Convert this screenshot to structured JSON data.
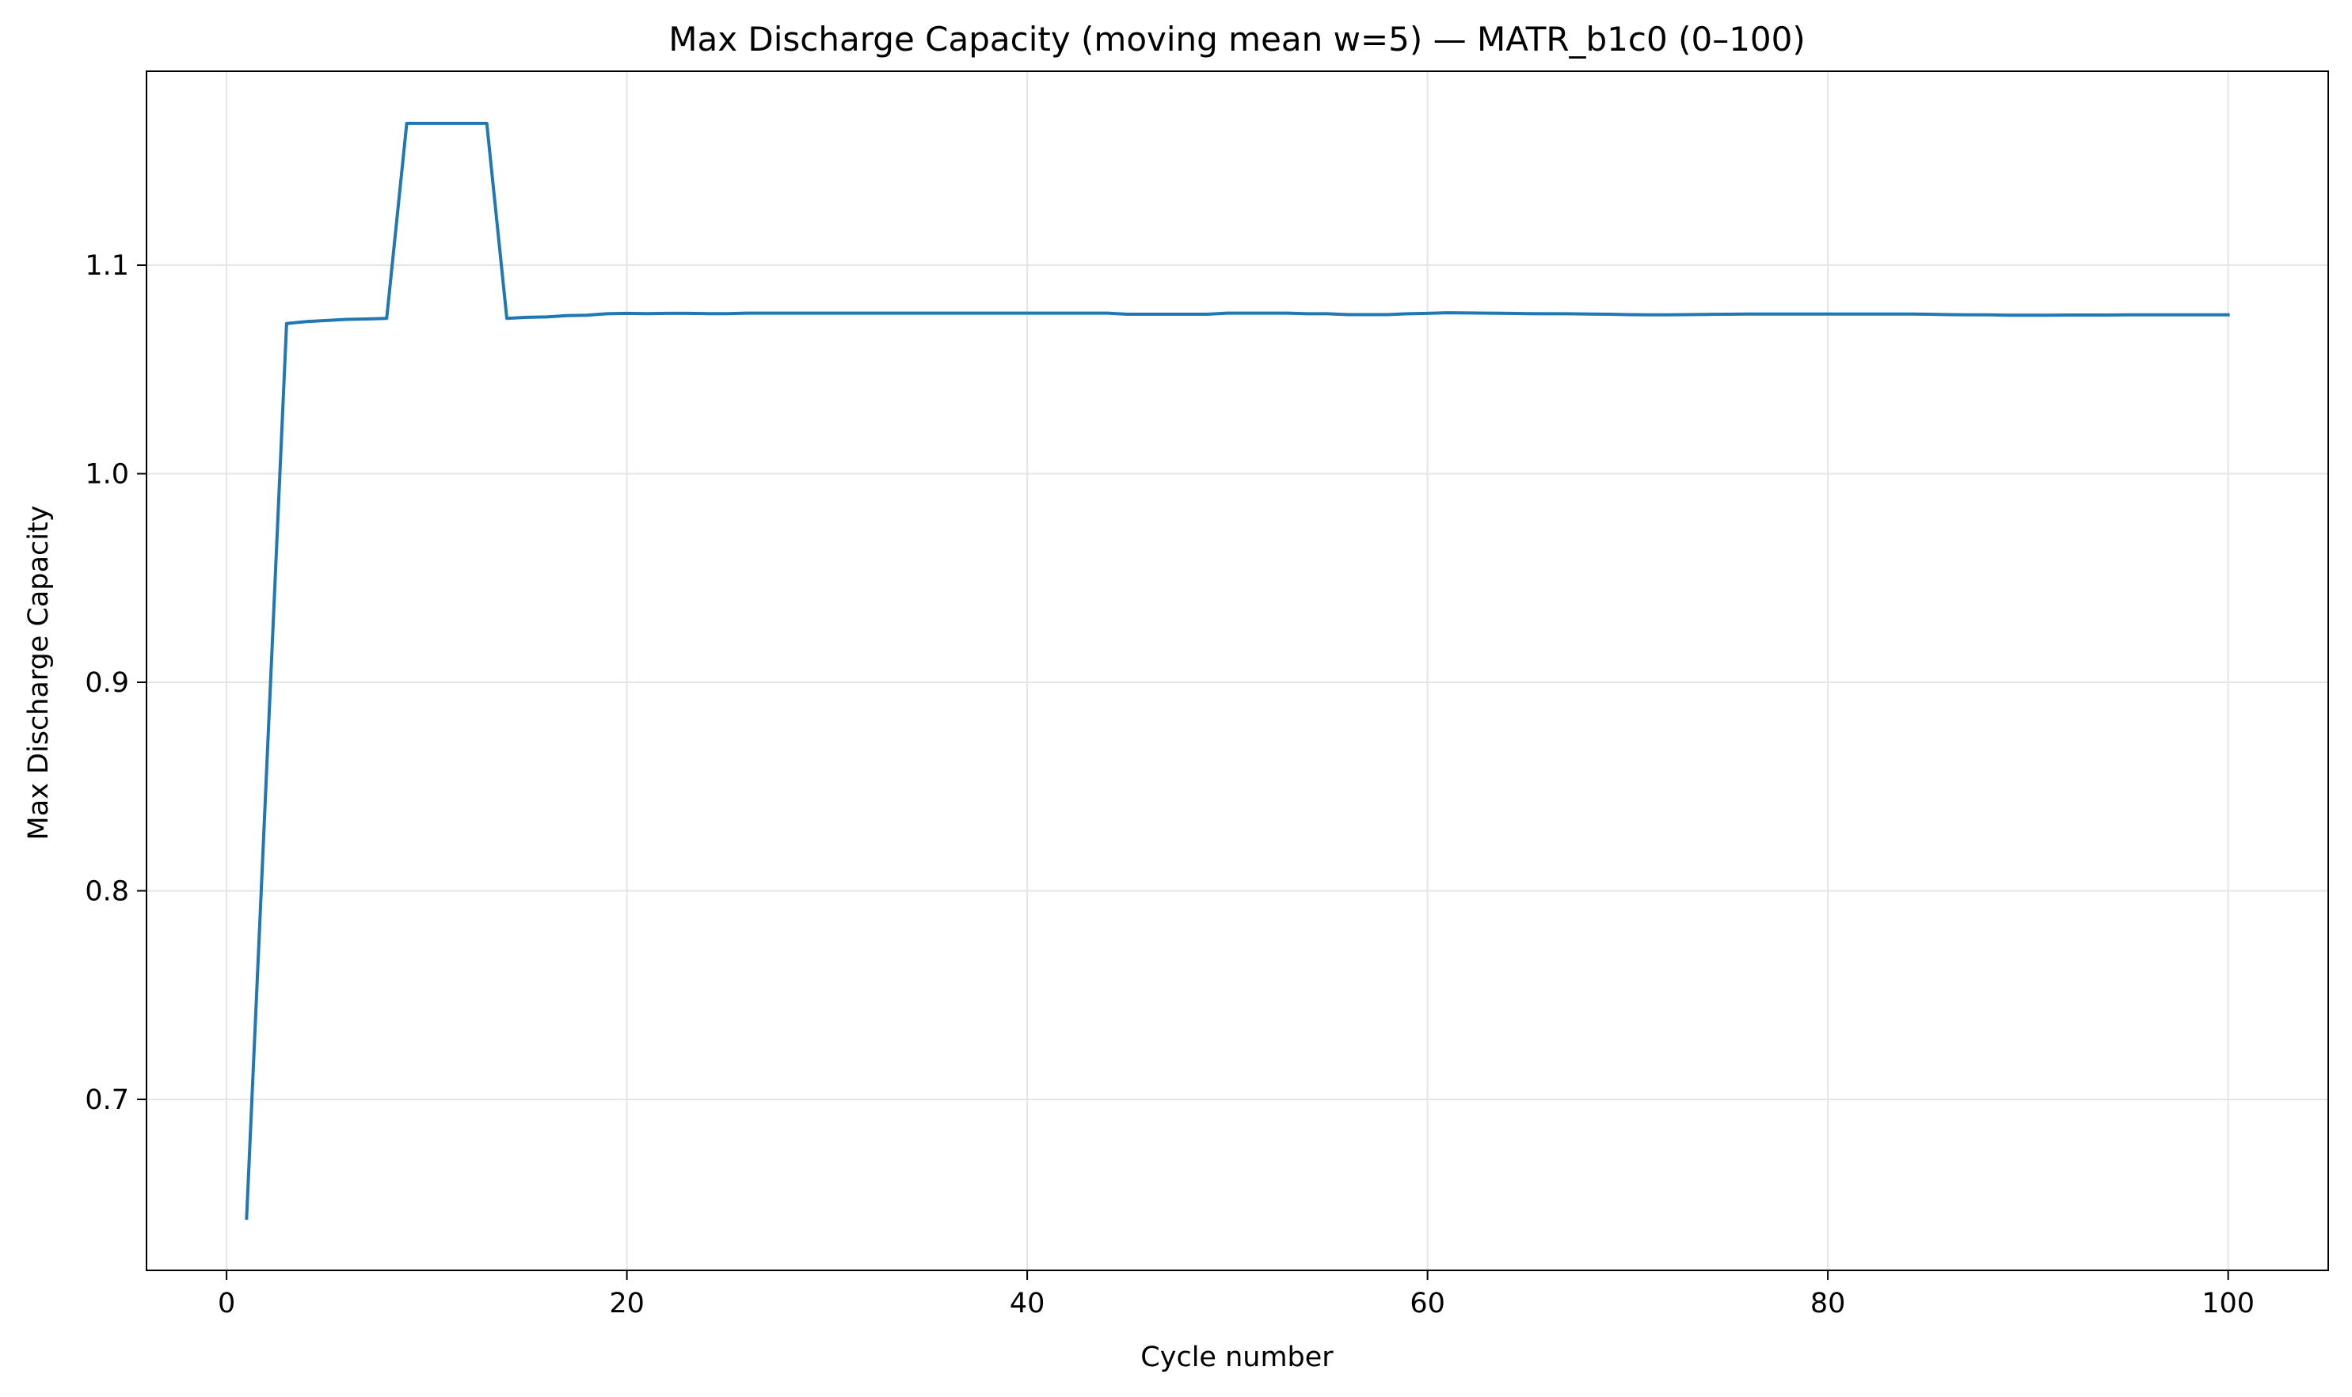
{
  "chart_data": {
    "type": "line",
    "title": "Max Discharge Capacity (moving mean w=5) — MATR_b1c0 (0–100)",
    "xlabel": "Cycle number",
    "ylabel": "Max Discharge Capacity",
    "xlim": [
      -4,
      105
    ],
    "ylim": [
      0.618,
      1.193
    ],
    "xticks": [
      0,
      20,
      40,
      60,
      80,
      100
    ],
    "xtick_labels": [
      "0",
      "20",
      "40",
      "60",
      "80",
      "100"
    ],
    "yticks": [
      0.7,
      0.8,
      0.9,
      1.0,
      1.1
    ],
    "ytick_labels": [
      "0.7",
      "0.8",
      "0.9",
      "1.0",
      "1.1"
    ],
    "grid": true,
    "legend": "none",
    "colors": {
      "line": "#1f77b4",
      "grid": "#e5e5e5",
      "axes": "#000000"
    },
    "series": [
      {
        "x": [
          1,
          2,
          3,
          4,
          5,
          6,
          7,
          8,
          9,
          10,
          11,
          12,
          13,
          14,
          15,
          16,
          17,
          18,
          19,
          20,
          21,
          22,
          23,
          24,
          25,
          26,
          27,
          28,
          29,
          30,
          31,
          32,
          33,
          34,
          35,
          36,
          37,
          38,
          39,
          40,
          41,
          42,
          43,
          44,
          45,
          46,
          47,
          48,
          49,
          50,
          51,
          52,
          53,
          54,
          55,
          56,
          57,
          58,
          59,
          60,
          61,
          62,
          63,
          64,
          65,
          66,
          67,
          68,
          69,
          70,
          71,
          72,
          73,
          74,
          75,
          76,
          77,
          78,
          79,
          80,
          81,
          82,
          83,
          84,
          85,
          86,
          87,
          88,
          89,
          90,
          91,
          92,
          93,
          94,
          95,
          96,
          97,
          98,
          99,
          100
        ],
        "values": [
          0.643,
          0.858,
          1.072,
          1.073,
          1.0735,
          1.074,
          1.0742,
          1.0745,
          1.168,
          1.168,
          1.168,
          1.168,
          1.168,
          1.0745,
          1.075,
          1.0752,
          1.0758,
          1.076,
          1.0767,
          1.0769,
          1.0768,
          1.0769,
          1.0769,
          1.0768,
          1.0768,
          1.077,
          1.077,
          1.077,
          1.077,
          1.077,
          1.077,
          1.077,
          1.077,
          1.077,
          1.077,
          1.077,
          1.077,
          1.077,
          1.077,
          1.077,
          1.077,
          1.077,
          1.077,
          1.077,
          1.0765,
          1.0765,
          1.0765,
          1.0765,
          1.0765,
          1.077,
          1.077,
          1.077,
          1.077,
          1.0767,
          1.0767,
          1.0763,
          1.0763,
          1.0763,
          1.0767,
          1.0769,
          1.0772,
          1.0771,
          1.077,
          1.0769,
          1.0768,
          1.0767,
          1.0767,
          1.0766,
          1.0765,
          1.0763,
          1.0762,
          1.0762,
          1.0763,
          1.0764,
          1.0765,
          1.0766,
          1.0766,
          1.0766,
          1.0766,
          1.0766,
          1.0766,
          1.0766,
          1.0766,
          1.0766,
          1.0765,
          1.0763,
          1.0762,
          1.0762,
          1.076,
          1.076,
          1.076,
          1.0761,
          1.0761,
          1.0761,
          1.0762,
          1.0762,
          1.0762,
          1.0762,
          1.0762,
          1.0762
        ]
      }
    ]
  }
}
